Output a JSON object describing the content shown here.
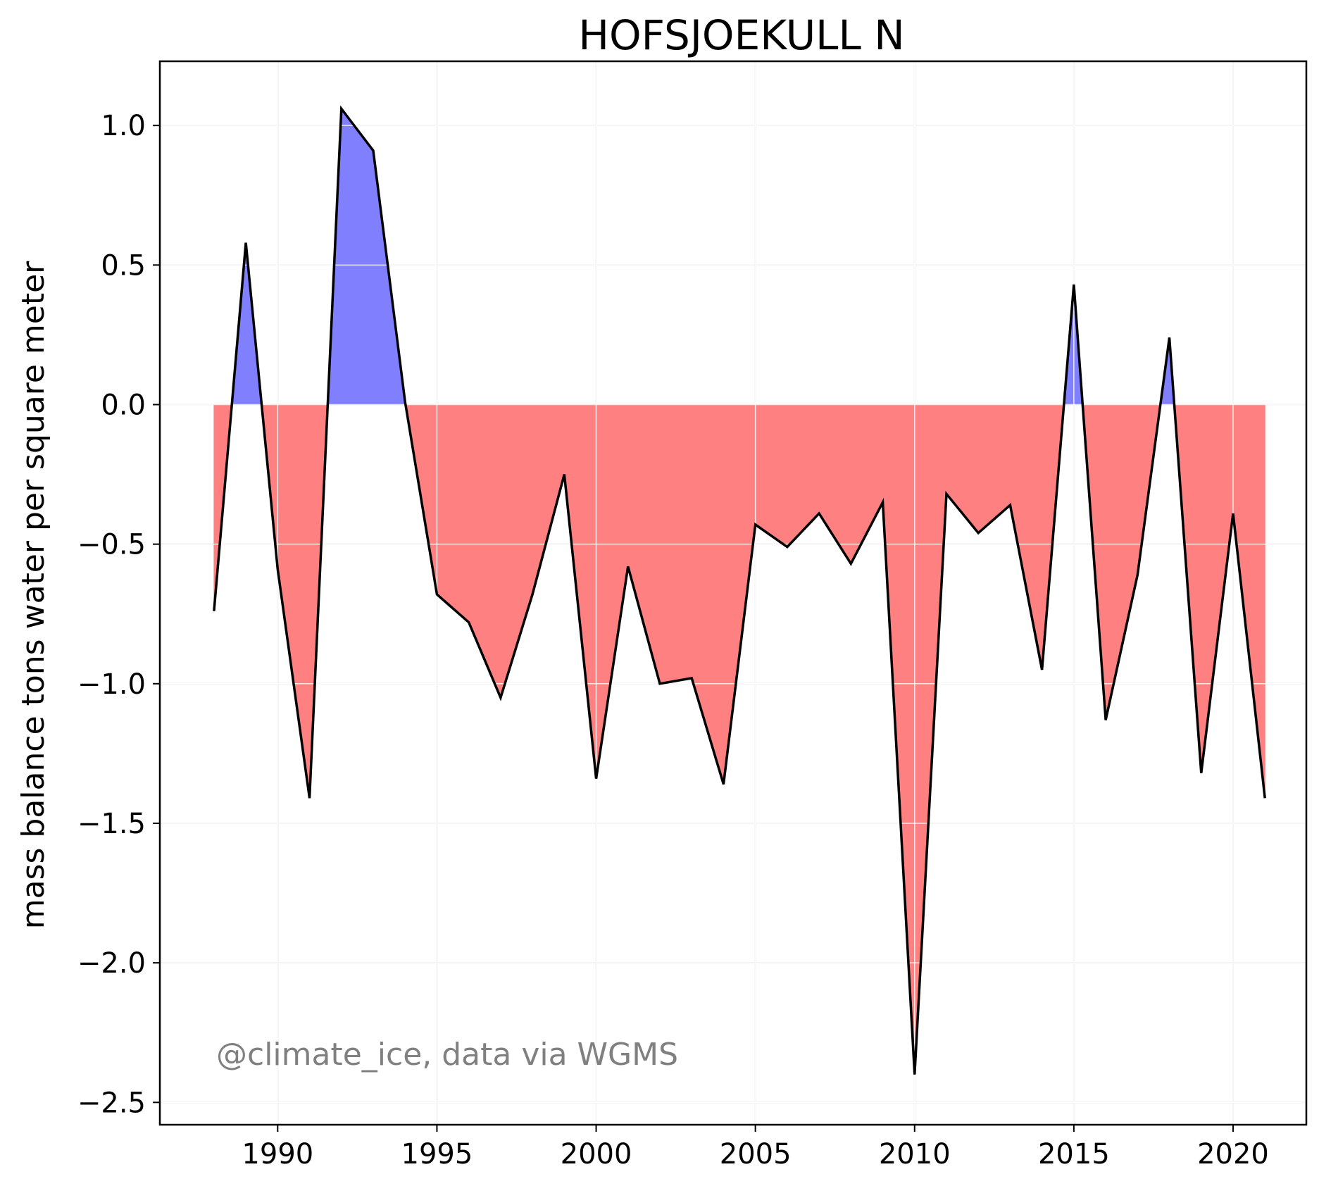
{
  "chart_data": {
    "type": "area",
    "title": "HOFSJOEKULL N",
    "xlabel": "",
    "ylabel": "mass balance tons water per square meter",
    "annotation": "@climate_ice, data via WGMS",
    "xlim": [
      1986.3,
      2022.3
    ],
    "ylim": [
      -2.58,
      1.23
    ],
    "xticks": [
      1990,
      1995,
      2000,
      2005,
      2010,
      2015,
      2020
    ],
    "yticks": [
      1.0,
      0.5,
      0.0,
      -0.5,
      -1.0,
      -1.5,
      -2.0,
      -2.5
    ],
    "ytick_labels": [
      "1.0",
      "0.5",
      "0.0",
      "−0.5",
      "−1.0",
      "−1.5",
      "−2.0",
      "−2.5"
    ],
    "grid": true,
    "series": [
      {
        "x": [
          1988,
          1989,
          1990,
          1991,
          1992,
          1993,
          1994,
          1995,
          1996,
          1997,
          1998,
          1999,
          2000,
          2001,
          2002,
          2003,
          2004,
          2005,
          2006,
          2007,
          2008,
          2009,
          2010,
          2011,
          2012,
          2013,
          2014,
          2015,
          2016,
          2017,
          2018,
          2019,
          2020,
          2021
        ],
        "values": [
          -0.74,
          0.58,
          -0.59,
          -1.41,
          1.06,
          0.91,
          0.01,
          -0.68,
          -0.78,
          -1.05,
          -0.68,
          -0.25,
          -1.34,
          -0.58,
          -1.0,
          -0.98,
          -1.36,
          -0.43,
          -0.51,
          -0.39,
          -0.57,
          -0.35,
          -2.4,
          -0.32,
          -0.46,
          -0.36,
          -0.95,
          0.43,
          -1.13,
          -0.61,
          0.24,
          -1.32,
          -0.39,
          -1.41
        ]
      }
    ],
    "colors": {
      "positive_fill": "#8080ff",
      "negative_fill": "#ff8080",
      "line": "#000000",
      "grid": "#e6e6e6"
    }
  }
}
